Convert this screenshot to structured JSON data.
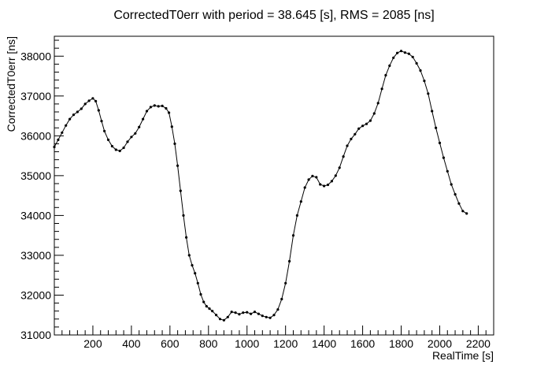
{
  "chart_data": {
    "type": "line",
    "title": "CorrectedT0err with period = 38.645 [s], RMS = 2085 [ns]",
    "xlabel": "RealTime [s]",
    "ylabel": "CorrectedT0err [ns]",
    "xlim": [
      0,
      2280
    ],
    "ylim": [
      31000,
      38500
    ],
    "x_ticks": [
      200,
      400,
      600,
      800,
      1000,
      1200,
      1400,
      1600,
      1800,
      2000,
      2200
    ],
    "x_tick_labels": [
      "200",
      "400",
      "600",
      "800",
      "1000",
      "1200",
      "1400",
      "1600",
      "1800",
      "2000",
      "2200"
    ],
    "y_ticks": [
      31000,
      32000,
      33000,
      34000,
      35000,
      36000,
      37000,
      38000
    ],
    "y_tick_labels": [
      "31000",
      "32000",
      "33000",
      "34000",
      "35000",
      "36000",
      "37000",
      "38000"
    ],
    "grid": false,
    "legend": "none",
    "series": [
      {
        "marker": "dot",
        "color": "#000000",
        "points": [
          [
            0,
            35720
          ],
          [
            20,
            35900
          ],
          [
            40,
            36080
          ],
          [
            60,
            36260
          ],
          [
            80,
            36420
          ],
          [
            100,
            36530
          ],
          [
            120,
            36600
          ],
          [
            140,
            36680
          ],
          [
            160,
            36800
          ],
          [
            180,
            36880
          ],
          [
            200,
            36940
          ],
          [
            215,
            36870
          ],
          [
            230,
            36640
          ],
          [
            245,
            36370
          ],
          [
            260,
            36120
          ],
          [
            280,
            35900
          ],
          [
            300,
            35740
          ],
          [
            320,
            35650
          ],
          [
            340,
            35620
          ],
          [
            360,
            35700
          ],
          [
            380,
            35850
          ],
          [
            400,
            35970
          ],
          [
            420,
            36060
          ],
          [
            440,
            36220
          ],
          [
            460,
            36420
          ],
          [
            480,
            36620
          ],
          [
            500,
            36720
          ],
          [
            520,
            36760
          ],
          [
            540,
            36740
          ],
          [
            560,
            36750
          ],
          [
            580,
            36690
          ],
          [
            595,
            36580
          ],
          [
            610,
            36230
          ],
          [
            625,
            35800
          ],
          [
            640,
            35250
          ],
          [
            655,
            34620
          ],
          [
            670,
            34000
          ],
          [
            685,
            33450
          ],
          [
            700,
            33000
          ],
          [
            715,
            32750
          ],
          [
            730,
            32550
          ],
          [
            745,
            32300
          ],
          [
            760,
            32020
          ],
          [
            775,
            31830
          ],
          [
            790,
            31720
          ],
          [
            805,
            31660
          ],
          [
            820,
            31600
          ],
          [
            840,
            31500
          ],
          [
            860,
            31400
          ],
          [
            880,
            31370
          ],
          [
            900,
            31450
          ],
          [
            920,
            31580
          ],
          [
            940,
            31560
          ],
          [
            960,
            31520
          ],
          [
            980,
            31560
          ],
          [
            1000,
            31570
          ],
          [
            1020,
            31530
          ],
          [
            1040,
            31580
          ],
          [
            1060,
            31530
          ],
          [
            1080,
            31480
          ],
          [
            1100,
            31450
          ],
          [
            1120,
            31430
          ],
          [
            1140,
            31500
          ],
          [
            1160,
            31640
          ],
          [
            1180,
            31900
          ],
          [
            1200,
            32300
          ],
          [
            1220,
            32850
          ],
          [
            1240,
            33500
          ],
          [
            1260,
            34000
          ],
          [
            1280,
            34350
          ],
          [
            1300,
            34700
          ],
          [
            1320,
            34900
          ],
          [
            1340,
            34990
          ],
          [
            1360,
            34960
          ],
          [
            1380,
            34780
          ],
          [
            1400,
            34740
          ],
          [
            1420,
            34770
          ],
          [
            1440,
            34860
          ],
          [
            1460,
            35000
          ],
          [
            1480,
            35200
          ],
          [
            1500,
            35480
          ],
          [
            1520,
            35750
          ],
          [
            1540,
            35920
          ],
          [
            1560,
            36040
          ],
          [
            1580,
            36180
          ],
          [
            1600,
            36250
          ],
          [
            1620,
            36300
          ],
          [
            1640,
            36380
          ],
          [
            1660,
            36560
          ],
          [
            1680,
            36820
          ],
          [
            1700,
            37180
          ],
          [
            1720,
            37520
          ],
          [
            1740,
            37760
          ],
          [
            1760,
            37960
          ],
          [
            1780,
            38080
          ],
          [
            1800,
            38130
          ],
          [
            1820,
            38090
          ],
          [
            1840,
            38060
          ],
          [
            1860,
            37980
          ],
          [
            1880,
            37820
          ],
          [
            1900,
            37640
          ],
          [
            1920,
            37380
          ],
          [
            1940,
            37060
          ],
          [
            1960,
            36620
          ],
          [
            1980,
            36200
          ],
          [
            2000,
            35820
          ],
          [
            2020,
            35450
          ],
          [
            2040,
            35110
          ],
          [
            2060,
            34780
          ],
          [
            2080,
            34530
          ],
          [
            2100,
            34300
          ],
          [
            2120,
            34110
          ],
          [
            2140,
            34050
          ]
        ]
      }
    ]
  }
}
